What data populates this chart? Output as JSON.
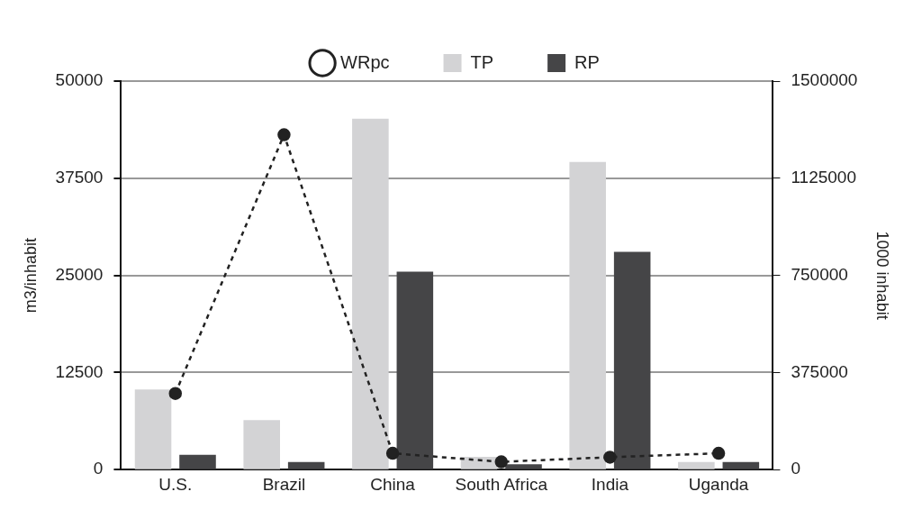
{
  "chart_data": {
    "type": "bar",
    "categories": [
      "U.S.",
      "Brazil",
      "China",
      "South Africa",
      "India",
      "Uganda"
    ],
    "series": [
      {
        "name": "WRpc",
        "type": "line",
        "color": "#222222",
        "line_style": "dashed",
        "marker": "circle",
        "values": [
          9800,
          43100,
          2100,
          1000,
          1600,
          2100
        ]
      },
      {
        "name": "TP",
        "color": "#d3d3d5",
        "axis": "y2",
        "values": [
          309000,
          191000,
          1355000,
          49000,
          1188000,
          29000
        ]
      },
      {
        "name": "RP",
        "color": "#454547",
        "axis": "y2",
        "values": [
          57000,
          29000,
          764000,
          21000,
          841000,
          29000
        ]
      }
    ],
    "ylabel": "m3/inhabit",
    "y2label": "1000 inhabit",
    "ylim": [
      0,
      50000
    ],
    "yticks": [
      0,
      12500,
      25000,
      37500,
      50000
    ],
    "y2lim": [
      0,
      1500000
    ],
    "y2ticks": [
      0,
      375000,
      750000,
      1125000,
      1500000
    ],
    "grid": "y",
    "legend": "top"
  }
}
